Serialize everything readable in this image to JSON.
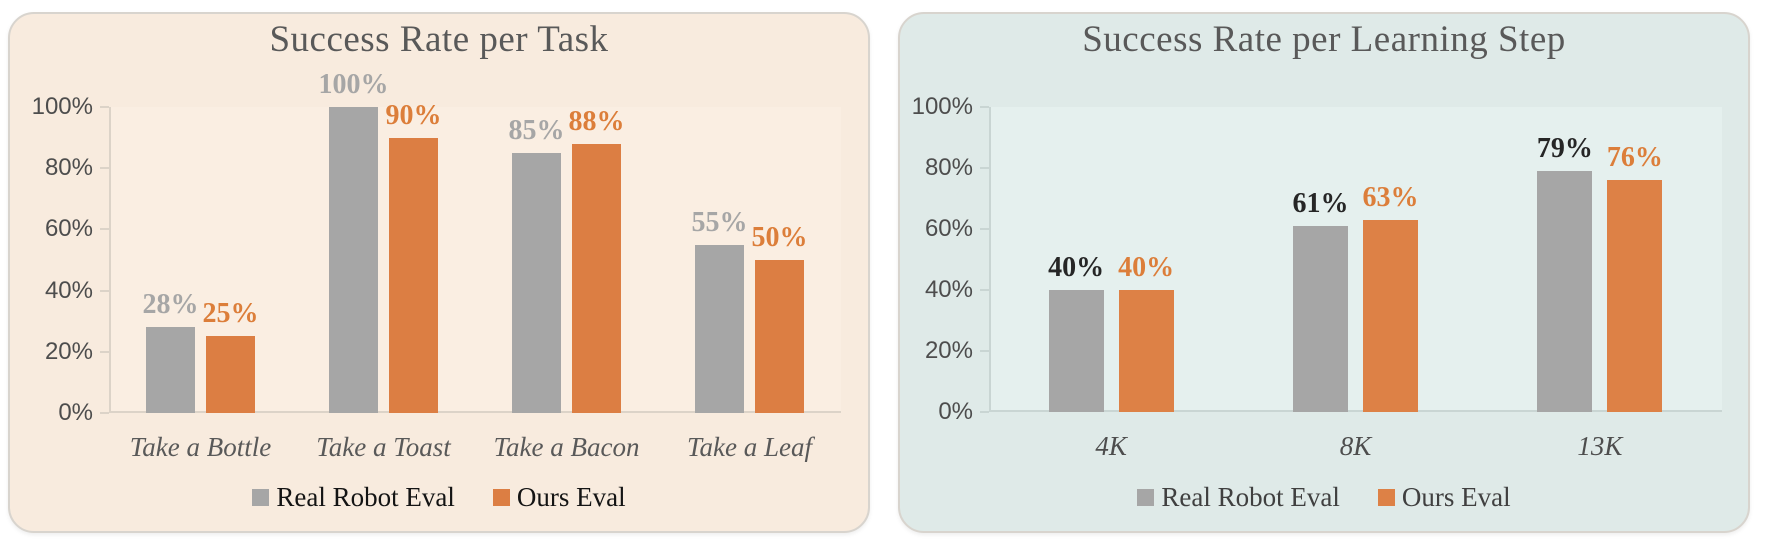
{
  "chart_data": [
    {
      "type": "bar",
      "title": "Success Rate per Task",
      "categories": [
        "Take a Bottle",
        "Take a Toast",
        "Take a Bacon",
        "Take a Leaf"
      ],
      "series": [
        {
          "name": "Real Robot Eval",
          "values": [
            28,
            100,
            85,
            55
          ],
          "data_labels": [
            "28%",
            "100%",
            "85%",
            "55%"
          ]
        },
        {
          "name": "Ours Eval",
          "values": [
            25,
            90,
            88,
            50
          ],
          "data_labels": [
            "25%",
            "90%",
            "88%",
            "50%"
          ]
        }
      ],
      "xlabel": "",
      "ylabel": "",
      "ylim": [
        0,
        100
      ],
      "yticks": [
        "0%",
        "20%",
        "40%",
        "60%",
        "80%",
        "100%"
      ],
      "grid": false,
      "legend_position": "bottom",
      "colors": {
        "background": "#f8ebde",
        "plot_background": "#faeee2",
        "series": [
          "#a6a6a6",
          "#dc7e43"
        ],
        "data_label_colors": [
          "#a6a6a6",
          "#dc7e3a"
        ],
        "legend_text": "#141414",
        "axis": "#dcd3c8",
        "title": "#595959",
        "tick_label": "#4d4d4d",
        "category_label": "#595959"
      }
    },
    {
      "type": "bar",
      "title": "Success Rate per Learning Step",
      "categories": [
        "4K",
        "8K",
        "13K"
      ],
      "series": [
        {
          "name": "Real Robot Eval",
          "values": [
            40,
            61,
            79
          ],
          "data_labels": [
            "40%",
            "61%",
            "79%"
          ]
        },
        {
          "name": "Ours Eval",
          "values": [
            40,
            63,
            76
          ],
          "data_labels": [
            "40%",
            "63%",
            "76%"
          ]
        }
      ],
      "xlabel": "",
      "ylabel": "",
      "ylim": [
        0,
        100
      ],
      "yticks": [
        "0%",
        "20%",
        "40%",
        "60%",
        "80%",
        "100%"
      ],
      "grid": false,
      "legend_position": "bottom",
      "colors": {
        "background": "#dfeae8",
        "plot_background": "#e5f0ee",
        "series": [
          "#a6a6a6",
          "#dd8146"
        ],
        "data_label_colors": [
          "#262626",
          "#dc7e3a"
        ],
        "legend_text": "#404040",
        "axis": "#c9d5d3",
        "title": "#595959",
        "tick_label": "#4d4d4d",
        "category_label": "#4d4d4d"
      }
    }
  ]
}
